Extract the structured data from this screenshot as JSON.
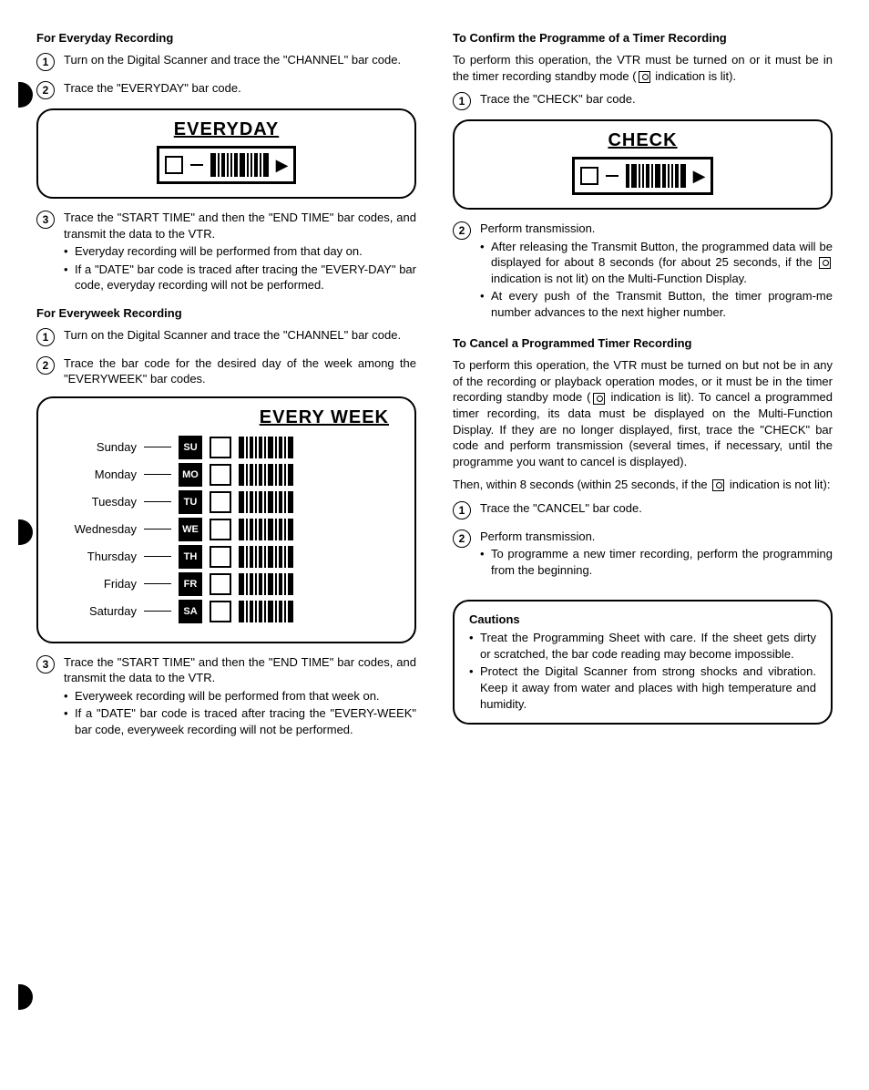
{
  "left": {
    "section1_head": "For Everyday Recording",
    "s1_step1": "Turn on the Digital Scanner and trace the \"CHANNEL\" bar code.",
    "s1_step2": "Trace the \"EVERYDAY\" bar code.",
    "everyday_title": "EVERYDAY",
    "s1_step3": "Trace the \"START TIME\" and then the \"END TIME\" bar codes, and transmit the data to the VTR.",
    "s1_b1": "Everyday recording will be performed from that day on.",
    "s1_b2": "If a \"DATE\" bar code is traced after tracing the \"EVERY-DAY\" bar code, everyday recording will not be performed.",
    "section2_head": "For Everyweek Recording",
    "s2_step1": "Turn on the Digital Scanner and trace the \"CHANNEL\" bar code.",
    "s2_step2": "Trace the bar code for the desired day of the week among the \"EVERYWEEK\" bar codes.",
    "everyweek_title": "EVERY WEEK",
    "days": [
      {
        "label": "Sunday",
        "tag": "SU"
      },
      {
        "label": "Monday",
        "tag": "MO"
      },
      {
        "label": "Tuesday",
        "tag": "TU"
      },
      {
        "label": "Wednesday",
        "tag": "WE"
      },
      {
        "label": "Thursday",
        "tag": "TH"
      },
      {
        "label": "Friday",
        "tag": "FR"
      },
      {
        "label": "Saturday",
        "tag": "SA"
      }
    ],
    "s2_step3": "Trace the \"START TIME\" and then the \"END TIME\" bar codes, and transmit the data to the VTR.",
    "s2_b1": "Everyweek recording will be performed from that week on.",
    "s2_b2": "If a \"DATE\" bar code is traced after tracing the \"EVERY-WEEK\" bar code, everyweek recording will not be performed."
  },
  "right": {
    "section3_head": "To Confirm the Programme of a Timer Recording",
    "s3_intro_a": "To perform this operation, the VTR must be turned on or it must be in the timer recording standby mode (",
    "s3_intro_b": " indication is lit).",
    "s3_step1": "Trace the \"CHECK\" bar code.",
    "check_title": "CHECK",
    "s3_step2": "Perform transmission.",
    "s3_b1_a": "After releasing the Transmit Button, the programmed data will be displayed for about 8 seconds (for about 25 seconds, if the ",
    "s3_b1_b": " indication is not lit) on the Multi-Function Display.",
    "s3_b2": "At every push of the Transmit Button, the timer program-me number advances to the next higher number.",
    "section4_head": "To Cancel a Programmed Timer Recording",
    "s4_p1_a": "To perform this operation, the VTR must be turned on but not be in any of the recording or playback operation modes, or it must be in the timer recording standby mode (",
    "s4_p1_b": " indication is lit). To cancel a programmed timer recording, its data must be displayed on the Multi-Function Display. If they are no longer displayed, first, trace the \"CHECK\" bar code and perform transmission (several times, if necessary, until the programme you want to cancel is displayed).",
    "s4_p2_a": "Then, within 8 seconds (within 25 seconds, if the ",
    "s4_p2_b": " indication is not lit):",
    "s4_step1": "Trace the \"CANCEL\" bar code.",
    "s4_step2": "Perform transmission.",
    "s4_b1": "To programme a new timer recording, perform the programming from the beginning.",
    "caution_head": "Cautions",
    "c1": "Treat the Programming Sheet with care. If the sheet gets dirty or scratched, the bar code reading may become impossible.",
    "c2": "Protect the Digital Scanner from strong shocks and vibration. Keep it away from water and places with high temperature and humidity."
  }
}
